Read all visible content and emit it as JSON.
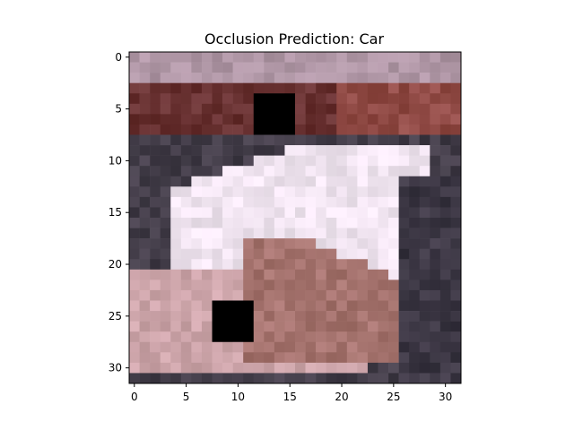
{
  "chart_data": {
    "type": "heatmap",
    "title": "Occlusion Prediction: Car",
    "xlabel": "",
    "ylabel": "",
    "grid_size": [
      32,
      32
    ],
    "xlim": [
      -0.5,
      31.5
    ],
    "ylim": [
      31.5,
      -0.5
    ],
    "x_ticks": [
      0,
      5,
      10,
      15,
      20,
      25,
      30
    ],
    "y_ticks": [
      0,
      5,
      10,
      15,
      20,
      25,
      30
    ],
    "image_description_regions": [
      {
        "label": "background-top",
        "rows": [
          0,
          2
        ],
        "color": "#b49aa6"
      },
      {
        "label": "dark-red-band",
        "rows": [
          3,
          7
        ],
        "color": "#6e3a36"
      },
      {
        "label": "dark-shadow",
        "rows": [
          8,
          31
        ],
        "color": "#4a4450"
      },
      {
        "label": "white-car-body",
        "rows": [
          9,
          22
        ],
        "color": "#f3e8f2"
      },
      {
        "label": "pink-car-front",
        "rows": [
          20,
          30
        ],
        "color": "#c9a0a3"
      }
    ],
    "occlusion_patches": [
      {
        "x_start": 12,
        "x_end": 15,
        "y_start": 4,
        "y_end": 7,
        "color": "#000000"
      },
      {
        "x_start": 8,
        "x_end": 11,
        "y_start": 24,
        "y_end": 27,
        "color": "#000000"
      }
    ]
  }
}
